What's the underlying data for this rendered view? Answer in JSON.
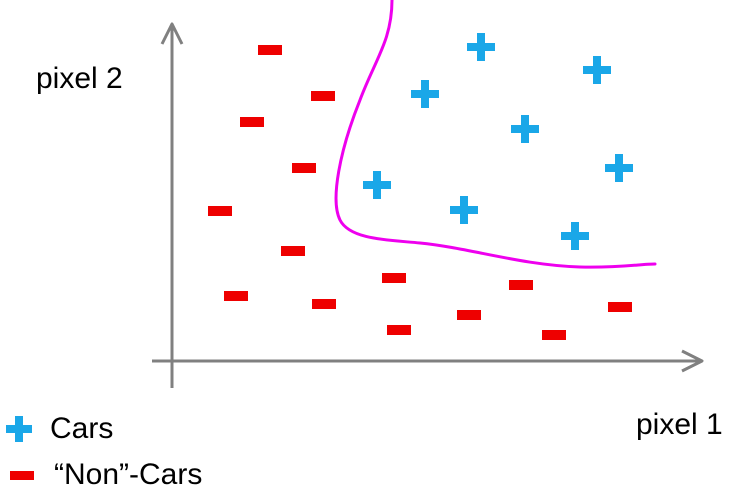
{
  "labels": {
    "x_axis": "pixel 1",
    "y_axis": "pixel 2"
  },
  "legend": {
    "cars": "Cars",
    "non_cars": "“Non”-Cars"
  },
  "colors": {
    "axis": "#808080",
    "cars": "#1aa7e8",
    "non_cars": "#ee0000",
    "boundary": "#ee00ee"
  }
}
